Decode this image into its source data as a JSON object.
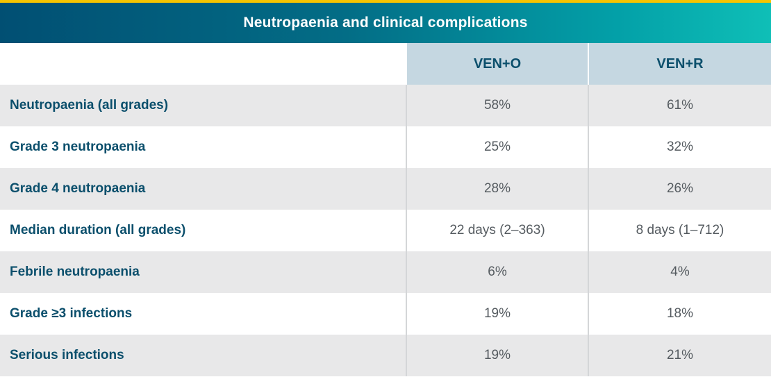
{
  "title": "Neutropaenia and clinical complications",
  "columns": [
    "VEN+O",
    "VEN+R"
  ],
  "rows": [
    {
      "label": "Neutropaenia (all grades)",
      "ven_o": "58%",
      "ven_r": "61%"
    },
    {
      "label": "Grade 3 neutropaenia",
      "ven_o": "25%",
      "ven_r": "32%"
    },
    {
      "label": "Grade 4 neutropaenia",
      "ven_o": "28%",
      "ven_r": "26%"
    },
    {
      "label": "Median duration (all grades)",
      "ven_o": "22 days (2–363)",
      "ven_r": "8 days (1–712)"
    },
    {
      "label": "Febrile neutropaenia",
      "ven_o": "6%",
      "ven_r": "4%"
    },
    {
      "label": "Grade ≥3 infections",
      "ven_o": "19%",
      "ven_r": "18%"
    },
    {
      "label": "Serious infections",
      "ven_o": "19%",
      "ven_r": "21%"
    }
  ],
  "colors": {
    "accent_stripe": "#f6c400",
    "title_gradient_start": "#014f73",
    "title_gradient_end": "#0fbfb7",
    "header_fill": "#c5d7e1",
    "row_shade": "#e8e8e9",
    "label_text": "#0b4f6c",
    "value_text": "#555b60"
  }
}
